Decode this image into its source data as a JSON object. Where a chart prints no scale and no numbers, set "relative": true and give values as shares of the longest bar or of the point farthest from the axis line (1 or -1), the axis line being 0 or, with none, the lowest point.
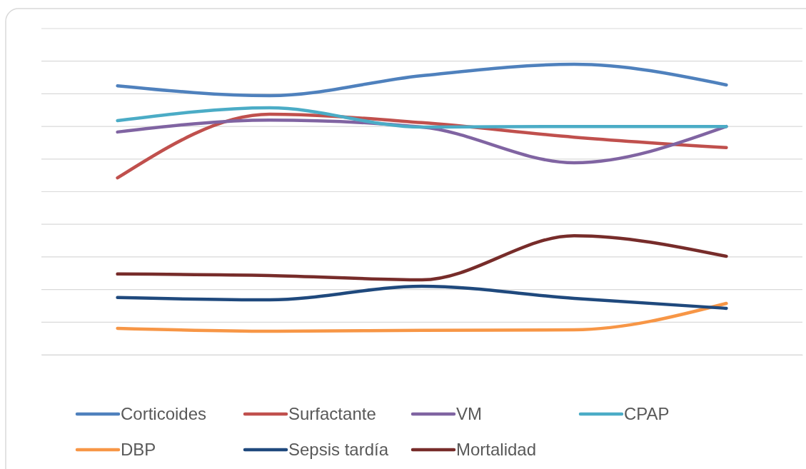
{
  "chart_data": {
    "type": "line",
    "relative": true,
    "grid": "y",
    "legend": "bottom",
    "line_style": "solid",
    "marker": "none",
    "categories": [
      null,
      null,
      null,
      null,
      null
    ],
    "series": [
      {
        "name": "Corticoides",
        "color": "#4f81bd",
        "values": [
          0.926,
          0.892,
          0.961,
          1,
          0.929
        ]
      },
      {
        "name": "Surfactante",
        "color": "#c0504d",
        "values": [
          0.609,
          0.828,
          0.799,
          0.749,
          0.713
        ]
      },
      {
        "name": "VM",
        "color": "#8064a2",
        "values": [
          0.767,
          0.808,
          0.784,
          0.661,
          0.786
        ]
      },
      {
        "name": "CPAP",
        "color": "#4bacc6",
        "values": [
          0.806,
          0.85,
          0.784,
          0.786,
          0.786
        ]
      },
      {
        "name": "DBP",
        "color": "#f79646",
        "values": [
          0.091,
          0.081,
          0.084,
          0.086,
          0.177
        ]
      },
      {
        "name": "Sepsis tardía",
        "color": "#1f497d",
        "values": [
          0.197,
          0.189,
          0.236,
          0.194,
          0.16
        ]
      },
      {
        "name": "Mortalidad",
        "color": "#772c2a",
        "values": [
          0.278,
          0.273,
          0.258,
          0.41,
          0.339
        ]
      }
    ]
  }
}
